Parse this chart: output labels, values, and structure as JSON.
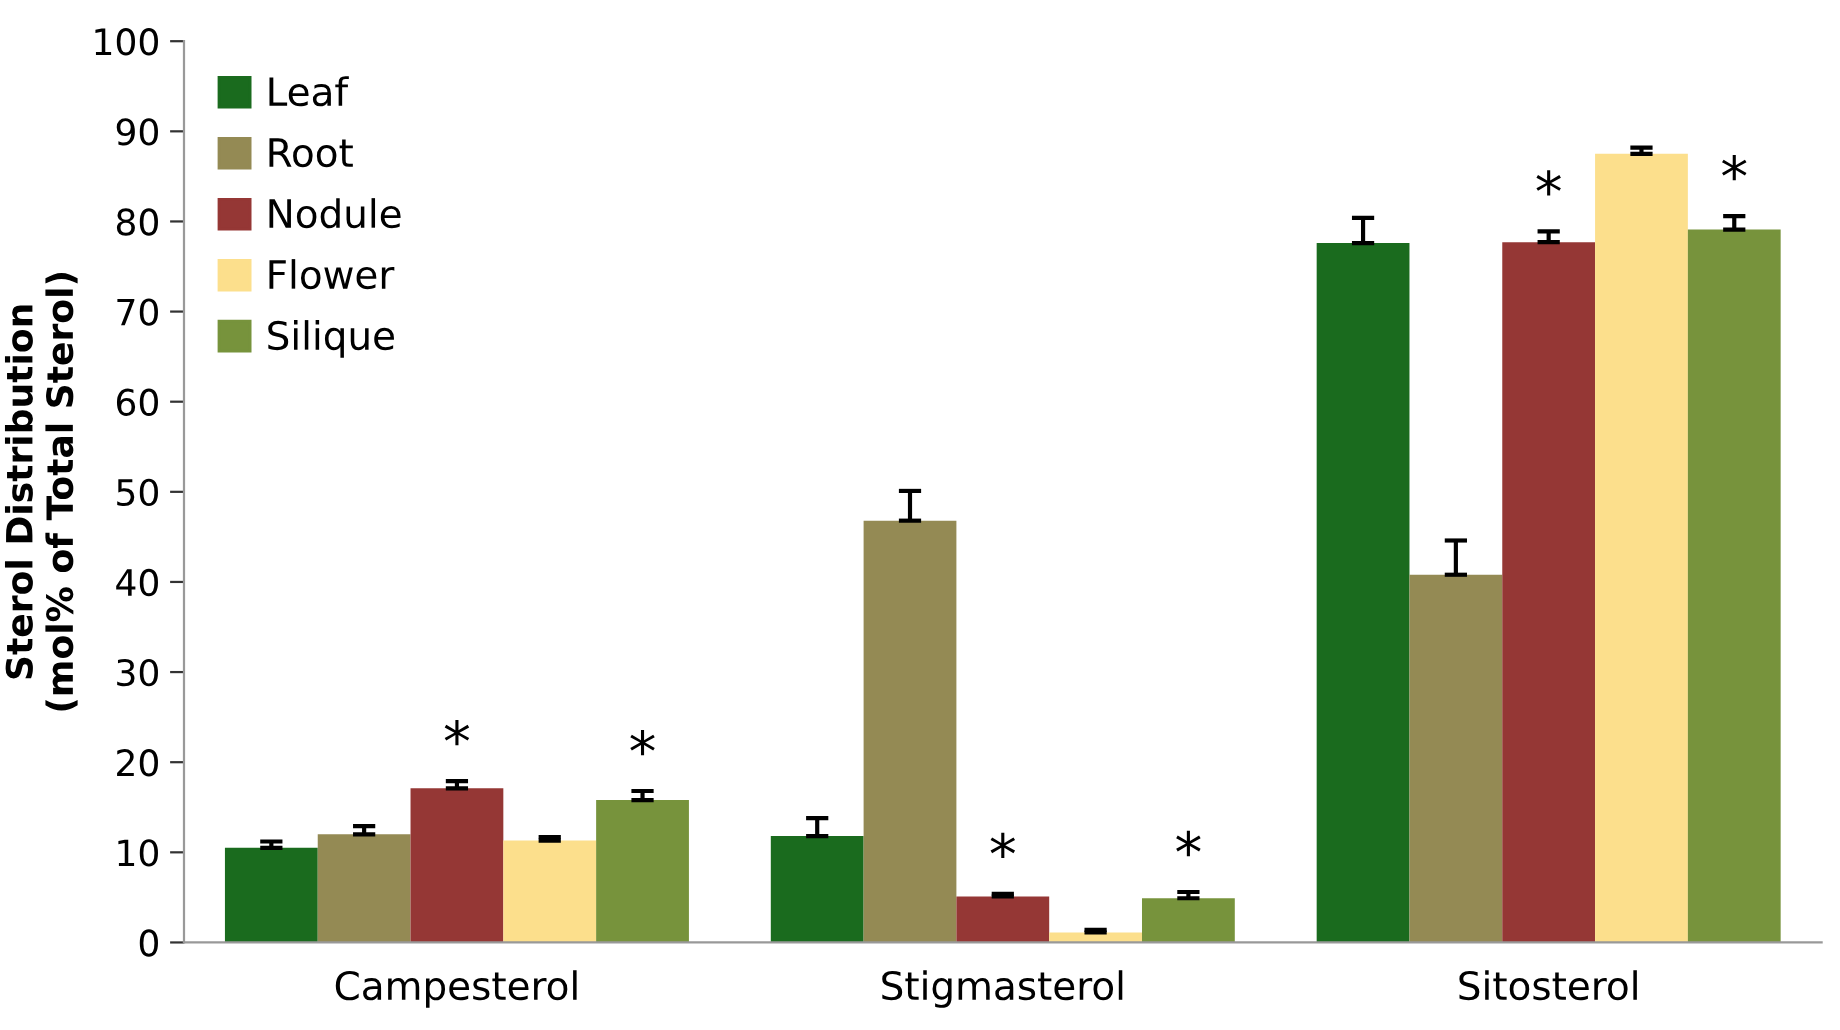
{
  "chart_data": {
    "type": "bar",
    "ylabel": "Sterol Distribution\n(mol% of Total Sterol)",
    "categories": [
      "Campesterol",
      "Stigmasterol",
      "Sitosterol"
    ],
    "series": [
      {
        "name": "Leaf",
        "color": "#1a6b1e",
        "values": [
          10.5,
          11.8,
          77.6
        ],
        "errors": [
          [
            10.5,
            11.2
          ],
          [
            11.8,
            13.8
          ],
          [
            77.6,
            80.4
          ]
        ]
      },
      {
        "name": "Root",
        "color": "#948a54",
        "values": [
          12.0,
          46.8,
          40.8
        ],
        "errors": [
          [
            12.0,
            12.9
          ],
          [
            46.8,
            50.1
          ],
          [
            40.8,
            44.6
          ]
        ]
      },
      {
        "name": "Nodule",
        "color": "#953735",
        "values": [
          17.1,
          5.1,
          77.7
        ],
        "errors": [
          [
            17.1,
            17.9
          ],
          [
            5.1,
            5.4
          ],
          [
            77.7,
            78.9
          ]
        ]
      },
      {
        "name": "Flower",
        "color": "#fcdf8c",
        "values": [
          11.3,
          1.1,
          87.5
        ],
        "errors": [
          [
            11.3,
            11.7
          ],
          [
            1.1,
            1.4
          ],
          [
            87.5,
            88.2
          ]
        ]
      },
      {
        "name": "Silique",
        "color": "#77933c",
        "values": [
          15.8,
          4.9,
          79.1
        ],
        "errors": [
          [
            15.8,
            16.8
          ],
          [
            4.9,
            5.6
          ],
          [
            79.1,
            80.6
          ]
        ]
      }
    ],
    "annotations": [
      "*",
      "*",
      "*",
      "*",
      "*",
      "*"
    ],
    "ylim": [
      0,
      100
    ],
    "yticks": [
      0,
      10,
      20,
      30,
      40,
      50,
      60,
      70,
      80,
      90,
      100
    ],
    "grid": false,
    "legend": "top left"
  }
}
